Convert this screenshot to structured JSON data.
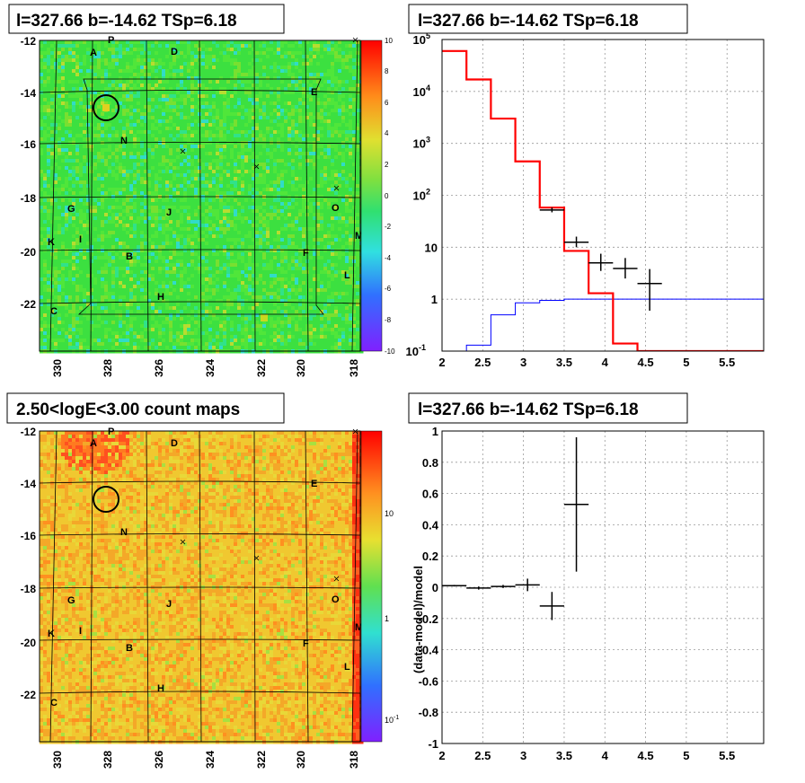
{
  "panels": {
    "p1_title": "l=327.66 b=-14.62 TSp=6.18",
    "p2_title": "l=327.66 b=-14.62 TSp=6.18",
    "p3_title": "2.50<logE<3.00 count maps",
    "p4_title": "l=327.66 b=-14.62 TSp=6.18"
  },
  "map": {
    "lon_ticks": [
      "330",
      "328",
      "326",
      "324",
      "322",
      "320",
      "318"
    ],
    "lat_ticks": [
      "-12",
      "-14",
      "-16",
      "-18",
      "-20",
      "-22"
    ],
    "source_labels": [
      "P",
      "A",
      "D",
      "E",
      "N",
      "G",
      "J",
      "O",
      "K",
      "I",
      "M",
      "F",
      "B",
      "L",
      "H",
      "C"
    ],
    "residual_colorbar_ticks": [
      "10",
      "8",
      "6",
      "4",
      "2",
      "0",
      "-2",
      "-4",
      "-6",
      "-8",
      "-10"
    ],
    "count_colorbar_ticks": [
      "10",
      "1",
      "10^-1"
    ]
  },
  "chart_data": [
    {
      "type": "line",
      "name": "spectrum",
      "x_ticks": [
        "2",
        "2.5",
        "3",
        "3.5",
        "4",
        "4.5",
        "5",
        "5.5"
      ],
      "y_ticks": [
        "10^5",
        "10^4",
        "10^3",
        "10^2",
        "10",
        "1",
        "10^-1"
      ],
      "xlim": [
        2.0,
        5.95
      ],
      "ylim": [
        0.1,
        100000
      ],
      "ylog": true,
      "grid": true,
      "colors": {
        "model": "#ff0000",
        "source_model": "#0000ff",
        "data": "#000000"
      },
      "model_step": {
        "edges": [
          2.0,
          2.3,
          2.6,
          2.9,
          3.2,
          3.5,
          3.8,
          4.1,
          4.4,
          4.7,
          5.95
        ],
        "values": [
          60000,
          17000,
          3000,
          450,
          58,
          8.5,
          1.3,
          0.14,
          0.1,
          0.1
        ]
      },
      "source_step": {
        "edges": [
          2.0,
          2.3,
          2.6,
          2.9,
          3.2,
          3.5,
          3.8,
          5.95
        ],
        "values": [
          0.1,
          0.13,
          0.5,
          0.85,
          0.95,
          1.0,
          1.0
        ]
      },
      "data_points": [
        {
          "x": 3.35,
          "y": 52,
          "ylo": 47,
          "yhi": 58,
          "xe": 0.15
        },
        {
          "x": 3.65,
          "y": 12.5,
          "ylo": 10,
          "yhi": 16,
          "xe": 0.15
        },
        {
          "x": 3.95,
          "y": 5,
          "ylo": 3.5,
          "yhi": 7.5,
          "xe": 0.15
        },
        {
          "x": 4.25,
          "y": 3.9,
          "ylo": 2.5,
          "yhi": 6.2,
          "xe": 0.15
        },
        {
          "x": 4.55,
          "y": 2.0,
          "ylo": 0.6,
          "yhi": 3.8,
          "xe": 0.15
        }
      ]
    },
    {
      "type": "scatter",
      "name": "residuals",
      "ylabel": "(data-model)/model",
      "x_ticks": [
        "2",
        "2.5",
        "3",
        "3.5",
        "4",
        "4.5",
        "5",
        "5.5"
      ],
      "y_ticks": [
        "1",
        "0.8",
        "0.6",
        "0.4",
        "0.2",
        "0",
        "-0.2",
        "-0.4",
        "-0.6",
        "-0.8",
        "-1"
      ],
      "xlim": [
        2.0,
        5.95
      ],
      "ylim": [
        -1,
        1
      ],
      "grid": true,
      "points": [
        {
          "x": 2.15,
          "y": 0.01,
          "err": 0.005,
          "xe": 0.15
        },
        {
          "x": 2.45,
          "y": -0.005,
          "err": 0.01,
          "xe": 0.15
        },
        {
          "x": 2.75,
          "y": 0.005,
          "err": 0.01,
          "xe": 0.15
        },
        {
          "x": 3.05,
          "y": 0.015,
          "err": 0.04,
          "xe": 0.15
        },
        {
          "x": 3.35,
          "y": -0.12,
          "err": 0.09,
          "xe": 0.15
        },
        {
          "x": 3.65,
          "y": 0.53,
          "err": 0.43,
          "xe": 0.15
        }
      ]
    }
  ]
}
